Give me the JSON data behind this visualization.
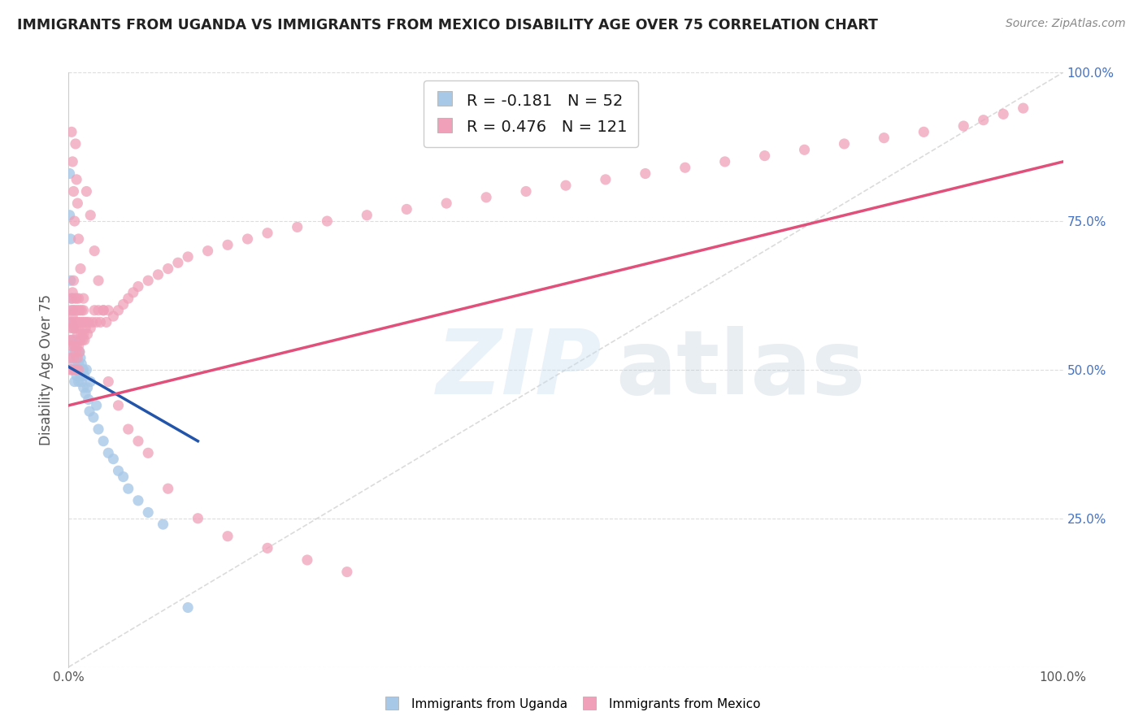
{
  "title": "IMMIGRANTS FROM UGANDA VS IMMIGRANTS FROM MEXICO DISABILITY AGE OVER 75 CORRELATION CHART",
  "source": "Source: ZipAtlas.com",
  "ylabel": "Disability Age Over 75",
  "xlim": [
    0,
    1.0
  ],
  "ylim": [
    0,
    1.0
  ],
  "legend_r1": "R = -0.181",
  "legend_n1": "N = 52",
  "legend_r2": "R = 0.476",
  "legend_n2": "N = 121",
  "color_uganda": "#a8c8e8",
  "color_mexico": "#f0a0b8",
  "color_uganda_line": "#2255aa",
  "color_mexico_line": "#e0507a",
  "color_diag": "#cccccc",
  "background_color": "#ffffff",
  "grid_color": "#dddddd",
  "title_color": "#222222",
  "uganda_x": [
    0.001,
    0.001,
    0.002,
    0.002,
    0.003,
    0.003,
    0.003,
    0.004,
    0.004,
    0.005,
    0.005,
    0.005,
    0.006,
    0.006,
    0.006,
    0.007,
    0.007,
    0.008,
    0.008,
    0.009,
    0.009,
    0.01,
    0.01,
    0.011,
    0.011,
    0.012,
    0.012,
    0.013,
    0.013,
    0.014,
    0.015,
    0.015,
    0.016,
    0.017,
    0.018,
    0.019,
    0.02,
    0.021,
    0.022,
    0.025,
    0.028,
    0.03,
    0.035,
    0.04,
    0.045,
    0.05,
    0.055,
    0.06,
    0.07,
    0.08,
    0.095,
    0.12
  ],
  "uganda_y": [
    0.83,
    0.76,
    0.72,
    0.65,
    0.62,
    0.58,
    0.55,
    0.6,
    0.52,
    0.57,
    0.53,
    0.5,
    0.54,
    0.51,
    0.48,
    0.55,
    0.5,
    0.52,
    0.49,
    0.53,
    0.5,
    0.48,
    0.51,
    0.5,
    0.53,
    0.49,
    0.52,
    0.48,
    0.51,
    0.5,
    0.47,
    0.5,
    0.49,
    0.46,
    0.5,
    0.47,
    0.45,
    0.43,
    0.48,
    0.42,
    0.44,
    0.4,
    0.38,
    0.36,
    0.35,
    0.33,
    0.32,
    0.3,
    0.28,
    0.26,
    0.24,
    0.1
  ],
  "mexico_x": [
    0.001,
    0.001,
    0.002,
    0.002,
    0.002,
    0.003,
    0.003,
    0.003,
    0.003,
    0.004,
    0.004,
    0.004,
    0.005,
    0.005,
    0.005,
    0.005,
    0.006,
    0.006,
    0.006,
    0.007,
    0.007,
    0.007,
    0.007,
    0.008,
    0.008,
    0.008,
    0.009,
    0.009,
    0.009,
    0.01,
    0.01,
    0.01,
    0.01,
    0.011,
    0.011,
    0.011,
    0.012,
    0.012,
    0.013,
    0.013,
    0.014,
    0.014,
    0.015,
    0.015,
    0.016,
    0.016,
    0.017,
    0.018,
    0.019,
    0.02,
    0.022,
    0.024,
    0.026,
    0.028,
    0.03,
    0.032,
    0.035,
    0.038,
    0.04,
    0.045,
    0.05,
    0.055,
    0.06,
    0.065,
    0.07,
    0.08,
    0.09,
    0.1,
    0.11,
    0.12,
    0.14,
    0.16,
    0.18,
    0.2,
    0.23,
    0.26,
    0.3,
    0.34,
    0.38,
    0.42,
    0.46,
    0.5,
    0.54,
    0.58,
    0.62,
    0.66,
    0.7,
    0.74,
    0.78,
    0.82,
    0.86,
    0.9,
    0.92,
    0.94,
    0.96,
    0.003,
    0.004,
    0.005,
    0.006,
    0.007,
    0.008,
    0.009,
    0.01,
    0.012,
    0.015,
    0.018,
    0.022,
    0.026,
    0.03,
    0.035,
    0.04,
    0.05,
    0.06,
    0.07,
    0.08,
    0.1,
    0.13,
    0.16,
    0.2,
    0.24,
    0.28
  ],
  "mexico_y": [
    0.55,
    0.52,
    0.6,
    0.57,
    0.5,
    0.62,
    0.58,
    0.54,
    0.5,
    0.63,
    0.59,
    0.55,
    0.65,
    0.6,
    0.57,
    0.52,
    0.62,
    0.58,
    0.54,
    0.6,
    0.57,
    0.53,
    0.5,
    0.62,
    0.58,
    0.54,
    0.6,
    0.56,
    0.52,
    0.62,
    0.58,
    0.54,
    0.5,
    0.6,
    0.57,
    0.53,
    0.58,
    0.55,
    0.6,
    0.56,
    0.58,
    0.55,
    0.6,
    0.56,
    0.58,
    0.55,
    0.57,
    0.58,
    0.56,
    0.58,
    0.57,
    0.58,
    0.6,
    0.58,
    0.6,
    0.58,
    0.6,
    0.58,
    0.6,
    0.59,
    0.6,
    0.61,
    0.62,
    0.63,
    0.64,
    0.65,
    0.66,
    0.67,
    0.68,
    0.69,
    0.7,
    0.71,
    0.72,
    0.73,
    0.74,
    0.75,
    0.76,
    0.77,
    0.78,
    0.79,
    0.8,
    0.81,
    0.82,
    0.83,
    0.84,
    0.85,
    0.86,
    0.87,
    0.88,
    0.89,
    0.9,
    0.91,
    0.92,
    0.93,
    0.94,
    0.9,
    0.85,
    0.8,
    0.75,
    0.88,
    0.82,
    0.78,
    0.72,
    0.67,
    0.62,
    0.8,
    0.76,
    0.7,
    0.65,
    0.6,
    0.48,
    0.44,
    0.4,
    0.38,
    0.36,
    0.3,
    0.25,
    0.22,
    0.2,
    0.18,
    0.16
  ]
}
